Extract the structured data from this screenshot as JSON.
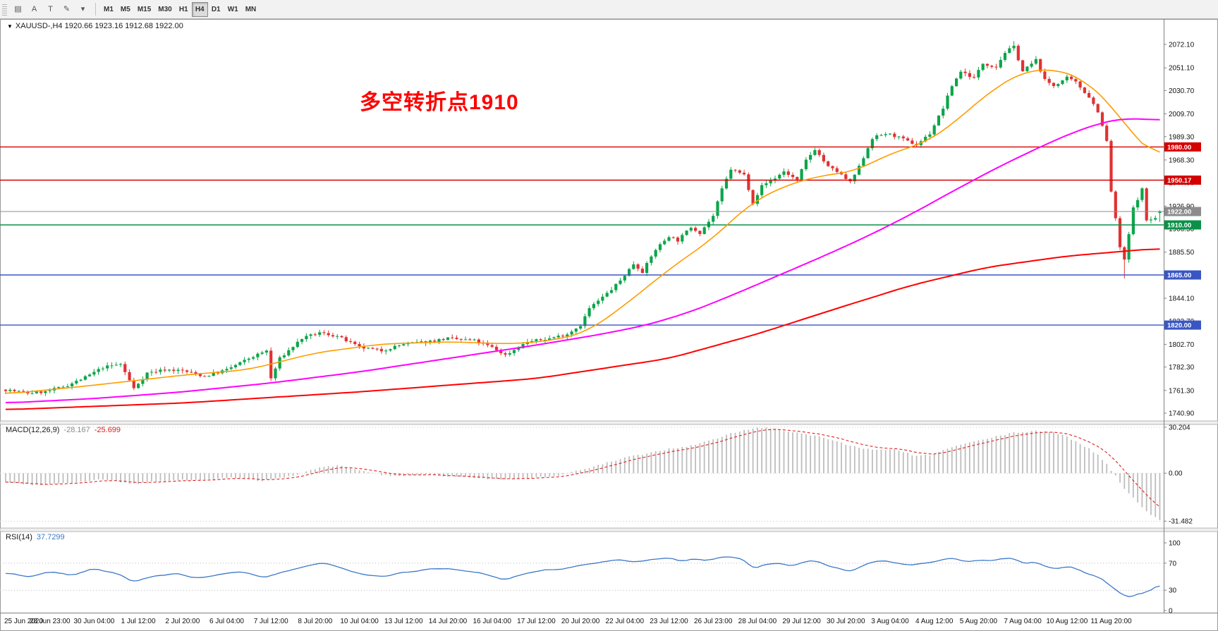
{
  "toolbar": {
    "tool_icons": [
      {
        "name": "chart-windows-icon",
        "glyph": "▤"
      },
      {
        "name": "text-label-a-icon",
        "glyph": "A"
      },
      {
        "name": "text-tool-icon",
        "glyph": "T"
      },
      {
        "name": "draw-arrow-icon",
        "glyph": "✎"
      },
      {
        "name": "dropdown-caret-icon",
        "glyph": "▾"
      }
    ],
    "timeframes": [
      "M1",
      "M5",
      "M15",
      "M30",
      "H1",
      "H4",
      "D1",
      "W1",
      "MN"
    ],
    "active_timeframe": "H4"
  },
  "header": {
    "marker": "▼",
    "symbol_info": "XAUUSD-,H4  1920.66 1923.16 1912.68 1922.00"
  },
  "annotation": {
    "text": "多空转折点1910",
    "color": "#ff0000"
  },
  "colors": {
    "candle_up": "#0ca54a",
    "candle_down": "#e03232",
    "ma_fast": "#ff9c00",
    "ma_mid": "#ff00ff",
    "ma_slow": "#ff0000",
    "macd_hist": "#bdbdbd",
    "macd_signal": "#e02020",
    "rsi_line": "#3c78c8",
    "bid_line": "#8c8c8c"
  },
  "chart_data": {
    "type": "candlestick",
    "symbol": "XAUUSD-",
    "timeframe": "H4",
    "ohlc_display": {
      "open": 1920.66,
      "high": 1923.16,
      "low": 1912.68,
      "close": 1922.0
    },
    "bars": 262,
    "price_axis_ticks": [
      "2072.10",
      "2051.10",
      "2030.70",
      "2009.70",
      "1989.30",
      "1968.30",
      "1947.90",
      "1926.90",
      "1906.50",
      "1885.50",
      "1864.50",
      "1844.10",
      "1823.70",
      "1802.70",
      "1782.30",
      "1761.30",
      "1740.90"
    ],
    "levels": [
      {
        "price": 1980.0,
        "label": "1980.00",
        "color": "#d40000",
        "type": "hline"
      },
      {
        "price": 1950.17,
        "label": "1950.17",
        "color": "#d40000",
        "type": "hline"
      },
      {
        "price": 1922.0,
        "label": "1922.00",
        "color": "#8c8c8c",
        "type": "bid"
      },
      {
        "price": 1910.0,
        "label": "1910.00",
        "color": "#0a9148",
        "type": "hline"
      },
      {
        "price": 1865.0,
        "label": "1865.00",
        "color": "#3a56c4",
        "type": "hline"
      },
      {
        "price": 1820.0,
        "label": "1820.00",
        "color": "#3a56c4",
        "type": "hline"
      }
    ],
    "close_anchors": [
      [
        0,
        1762
      ],
      [
        5,
        1759
      ],
      [
        9,
        1760
      ],
      [
        14,
        1766
      ],
      [
        18,
        1773
      ],
      [
        22,
        1782
      ],
      [
        26,
        1785
      ],
      [
        29,
        1763
      ],
      [
        32,
        1777
      ],
      [
        36,
        1780
      ],
      [
        40,
        1779
      ],
      [
        45,
        1774
      ],
      [
        50,
        1780
      ],
      [
        55,
        1790
      ],
      [
        59,
        1797
      ],
      [
        60,
        1772
      ],
      [
        62,
        1790
      ],
      [
        67,
        1808
      ],
      [
        71,
        1813
      ],
      [
        75,
        1810
      ],
      [
        80,
        1800
      ],
      [
        85,
        1797
      ],
      [
        90,
        1803
      ],
      [
        95,
        1805
      ],
      [
        100,
        1808
      ],
      [
        106,
        1806
      ],
      [
        110,
        1800
      ],
      [
        113,
        1793
      ],
      [
        118,
        1805
      ],
      [
        123,
        1808
      ],
      [
        127,
        1812
      ],
      [
        130,
        1820
      ],
      [
        132,
        1835
      ],
      [
        135,
        1845
      ],
      [
        137,
        1852
      ],
      [
        139,
        1860
      ],
      [
        142,
        1875
      ],
      [
        144,
        1868
      ],
      [
        147,
        1888
      ],
      [
        150,
        1900
      ],
      [
        152,
        1896
      ],
      [
        155,
        1908
      ],
      [
        157,
        1903
      ],
      [
        160,
        1918
      ],
      [
        162,
        1942
      ],
      [
        164,
        1960
      ],
      [
        167,
        1955
      ],
      [
        169,
        1930
      ],
      [
        171,
        1945
      ],
      [
        174,
        1952
      ],
      [
        176,
        1958
      ],
      [
        179,
        1950
      ],
      [
        181,
        1968
      ],
      [
        183,
        1978
      ],
      [
        186,
        1962
      ],
      [
        188,
        1958
      ],
      [
        191,
        1948
      ],
      [
        193,
        1962
      ],
      [
        196,
        1988
      ],
      [
        199,
        1992
      ],
      [
        201,
        1990
      ],
      [
        204,
        1985
      ],
      [
        206,
        1982
      ],
      [
        209,
        1992
      ],
      [
        212,
        2015
      ],
      [
        214,
        2035
      ],
      [
        216,
        2048
      ],
      [
        219,
        2042
      ],
      [
        221,
        2055
      ],
      [
        224,
        2052
      ],
      [
        226,
        2065
      ],
      [
        228,
        2070
      ],
      [
        230,
        2048
      ],
      [
        233,
        2058
      ],
      [
        235,
        2040
      ],
      [
        237,
        2035
      ],
      [
        240,
        2042
      ],
      [
        242,
        2038
      ],
      [
        245,
        2025
      ],
      [
        247,
        2012
      ],
      [
        249,
        1985
      ],
      [
        250,
        1940
      ],
      [
        252,
        1890
      ],
      [
        253,
        1878
      ],
      [
        255,
        1925
      ],
      [
        257,
        1942
      ],
      [
        258,
        1914
      ],
      [
        260,
        1916
      ],
      [
        261,
        1922
      ]
    ],
    "wick_overrides": {
      "228": {
        "high": 2075
      },
      "253": {
        "low": 1862
      }
    },
    "ma_lines": [
      {
        "name": "ma-fast",
        "color": "#ff9c00",
        "width": 1.6,
        "anchors": [
          [
            0,
            1758
          ],
          [
            20,
            1766
          ],
          [
            40,
            1775
          ],
          [
            55,
            1780
          ],
          [
            70,
            1795
          ],
          [
            85,
            1803
          ],
          [
            100,
            1805
          ],
          [
            115,
            1803
          ],
          [
            125,
            1807
          ],
          [
            132,
            1815
          ],
          [
            140,
            1838
          ],
          [
            150,
            1870
          ],
          [
            160,
            1898
          ],
          [
            168,
            1928
          ],
          [
            176,
            1945
          ],
          [
            184,
            1954
          ],
          [
            192,
            1958
          ],
          [
            200,
            1974
          ],
          [
            208,
            1984
          ],
          [
            214,
            2000
          ],
          [
            222,
            2028
          ],
          [
            230,
            2048
          ],
          [
            238,
            2050
          ],
          [
            244,
            2040
          ],
          [
            250,
            2018
          ],
          [
            255,
            1990
          ],
          [
            261,
            1968
          ]
        ]
      },
      {
        "name": "ma-mid",
        "color": "#ff00ff",
        "width": 2,
        "anchors": [
          [
            0,
            1750
          ],
          [
            20,
            1754
          ],
          [
            40,
            1760
          ],
          [
            60,
            1768
          ],
          [
            80,
            1778
          ],
          [
            100,
            1790
          ],
          [
            120,
            1802
          ],
          [
            135,
            1812
          ],
          [
            145,
            1820
          ],
          [
            155,
            1832
          ],
          [
            165,
            1848
          ],
          [
            175,
            1865
          ],
          [
            185,
            1882
          ],
          [
            195,
            1900
          ],
          [
            205,
            1920
          ],
          [
            215,
            1942
          ],
          [
            225,
            1963
          ],
          [
            235,
            1982
          ],
          [
            242,
            1994
          ],
          [
            248,
            2002
          ],
          [
            253,
            2006
          ],
          [
            261,
            2004
          ]
        ]
      },
      {
        "name": "ma-slow",
        "color": "#ff0000",
        "width": 2,
        "anchors": [
          [
            0,
            1744
          ],
          [
            40,
            1750
          ],
          [
            80,
            1760
          ],
          [
            120,
            1772
          ],
          [
            150,
            1790
          ],
          [
            170,
            1812
          ],
          [
            188,
            1835
          ],
          [
            205,
            1856
          ],
          [
            222,
            1872
          ],
          [
            240,
            1882
          ],
          [
            261,
            1889
          ]
        ]
      }
    ],
    "time_labels": [
      "25 Jun 2020",
      "28 Jun 23:00",
      "30 Jun 04:00",
      "1 Jul 12:00",
      "2 Jul 20:00",
      "6 Jul 04:00",
      "7 Jul 12:00",
      "8 Jul 20:00",
      "10 Jul 04:00",
      "13 Jul 12:00",
      "14 Jul 20:00",
      "16 Jul 04:00",
      "17 Jul 12:00",
      "20 Jul 20:00",
      "22 Jul 04:00",
      "23 Jul 12:00",
      "26 Jul 23:00",
      "28 Jul 04:00",
      "29 Jul 12:00",
      "30 Jul 20:00",
      "3 Aug 04:00",
      "4 Aug 12:00",
      "5 Aug 20:00",
      "7 Aug 04:00",
      "10 Aug 12:00",
      "11 Aug 20:00"
    ],
    "macd": {
      "label": "MACD(12,26,9)",
      "value_main": "-28.167",
      "value_signal": "-25.699",
      "axis_labels": [
        "30.204",
        "0.00",
        "-31.482"
      ],
      "axis_values": [
        30.204,
        0,
        -31.482
      ],
      "anchors": [
        [
          0,
          -6
        ],
        [
          8,
          -8
        ],
        [
          15,
          -6
        ],
        [
          22,
          -4
        ],
        [
          29,
          -7
        ],
        [
          36,
          -5
        ],
        [
          45,
          -4
        ],
        [
          52,
          -3
        ],
        [
          58,
          -5
        ],
        [
          65,
          -2
        ],
        [
          70,
          3
        ],
        [
          75,
          5
        ],
        [
          80,
          2
        ],
        [
          85,
          -1
        ],
        [
          90,
          -2
        ],
        [
          95,
          -1
        ],
        [
          100,
          -2
        ],
        [
          106,
          -3
        ],
        [
          112,
          -4
        ],
        [
          118,
          -3
        ],
        [
          124,
          -2
        ],
        [
          130,
          2
        ],
        [
          135,
          6
        ],
        [
          140,
          10
        ],
        [
          145,
          13
        ],
        [
          150,
          16
        ],
        [
          155,
          18
        ],
        [
          160,
          22
        ],
        [
          164,
          26
        ],
        [
          168,
          29
        ],
        [
          172,
          30
        ],
        [
          176,
          28
        ],
        [
          180,
          26
        ],
        [
          184,
          24
        ],
        [
          188,
          21
        ],
        [
          191,
          18
        ],
        [
          194,
          16
        ],
        [
          197,
          15
        ],
        [
          200,
          16
        ],
        [
          203,
          14
        ],
        [
          206,
          11
        ],
        [
          209,
          12
        ],
        [
          212,
          15
        ],
        [
          215,
          18
        ],
        [
          218,
          20
        ],
        [
          221,
          22
        ],
        [
          224,
          24
        ],
        [
          227,
          26
        ],
        [
          230,
          27
        ],
        [
          233,
          28
        ],
        [
          236,
          27
        ],
        [
          239,
          25
        ],
        [
          242,
          21
        ],
        [
          245,
          16
        ],
        [
          247,
          12
        ],
        [
          249,
          6
        ],
        [
          251,
          -2
        ],
        [
          253,
          -10
        ],
        [
          255,
          -16
        ],
        [
          257,
          -22
        ],
        [
          259,
          -27
        ],
        [
          261,
          -31.2
        ]
      ]
    },
    "rsi": {
      "label": "RSI(14)",
      "value": "37.7299",
      "axis_labels": [
        "100",
        "70",
        "30",
        "0"
      ],
      "axis_values": [
        100,
        70,
        30,
        0
      ],
      "level_lines": [
        70,
        30
      ],
      "anchors": [
        [
          0,
          55
        ],
        [
          5,
          50
        ],
        [
          10,
          58
        ],
        [
          15,
          52
        ],
        [
          20,
          62
        ],
        [
          25,
          55
        ],
        [
          29,
          42
        ],
        [
          33,
          50
        ],
        [
          38,
          55
        ],
        [
          43,
          48
        ],
        [
          48,
          52
        ],
        [
          53,
          58
        ],
        [
          58,
          48
        ],
        [
          62,
          55
        ],
        [
          67,
          65
        ],
        [
          72,
          70
        ],
        [
          75,
          66
        ],
        [
          80,
          55
        ],
        [
          85,
          50
        ],
        [
          90,
          57
        ],
        [
          95,
          60
        ],
        [
          100,
          62
        ],
        [
          105,
          58
        ],
        [
          110,
          52
        ],
        [
          113,
          45
        ],
        [
          118,
          57
        ],
        [
          123,
          60
        ],
        [
          127,
          63
        ],
        [
          131,
          68
        ],
        [
          135,
          72
        ],
        [
          139,
          75
        ],
        [
          143,
          72
        ],
        [
          147,
          76
        ],
        [
          150,
          78
        ],
        [
          153,
          73
        ],
        [
          156,
          76
        ],
        [
          159,
          74
        ],
        [
          162,
          79
        ],
        [
          164,
          80
        ],
        [
          167,
          76
        ],
        [
          169,
          62
        ],
        [
          172,
          68
        ],
        [
          175,
          70
        ],
        [
          178,
          66
        ],
        [
          181,
          72
        ],
        [
          183,
          75
        ],
        [
          186,
          66
        ],
        [
          188,
          63
        ],
        [
          191,
          58
        ],
        [
          193,
          64
        ],
        [
          196,
          72
        ],
        [
          199,
          74
        ],
        [
          202,
          70
        ],
        [
          205,
          66
        ],
        [
          208,
          70
        ],
        [
          212,
          75
        ],
        [
          214,
          78
        ],
        [
          217,
          72
        ],
        [
          220,
          75
        ],
        [
          223,
          73
        ],
        [
          226,
          77
        ],
        [
          228,
          78
        ],
        [
          230,
          68
        ],
        [
          233,
          72
        ],
        [
          235,
          64
        ],
        [
          238,
          62
        ],
        [
          240,
          65
        ],
        [
          242,
          62
        ],
        [
          245,
          55
        ],
        [
          247,
          50
        ],
        [
          249,
          42
        ],
        [
          251,
          30
        ],
        [
          253,
          22
        ],
        [
          255,
          20
        ],
        [
          257,
          28
        ],
        [
          258,
          25
        ],
        [
          260,
          35
        ],
        [
          261,
          37.7
        ]
      ]
    }
  }
}
